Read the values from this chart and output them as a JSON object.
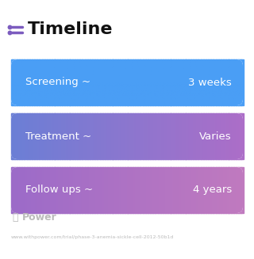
{
  "title": "Timeline",
  "title_fontsize": 16,
  "title_color": "#111111",
  "title_fontweight": "bold",
  "icon_color": "#7c5cbf",
  "background_color": "#ffffff",
  "rows": [
    {
      "label": "Screening ~",
      "value": "3 weeks",
      "color_left": "#4a9ef5",
      "color_right": "#4a9ef5"
    },
    {
      "label": "Treatment ~",
      "value": "Varies",
      "color_left": "#6b7fd6",
      "color_right": "#ac6ec8"
    },
    {
      "label": "Follow ups ~",
      "value": "4 years",
      "color_left": "#9c6bc9",
      "color_right": "#c07abf"
    }
  ],
  "watermark_text": "Power",
  "watermark_color": "#bbbbbb",
  "url_text": "www.withpower.com/trial/phase-3-anemia-sickle-cell-2012-50b1d",
  "url_color": "#bbbbbb",
  "text_fontsize": 9.5,
  "figsize": [
    3.2,
    3.27
  ],
  "dpi": 100
}
